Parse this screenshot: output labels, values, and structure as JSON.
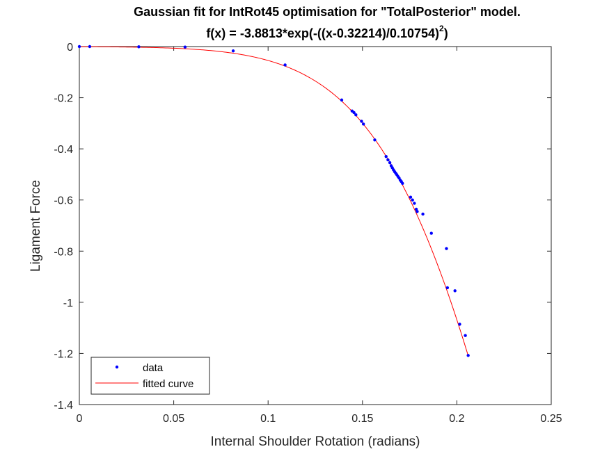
{
  "chart_data": {
    "type": "scatter",
    "title": "Gaussian fit for IntRot45 optimisation for \"TotalPosterior\" model.",
    "subtitle_main": "f(x) = -3.8813*exp(-((x-0.32214)/0.10754)",
    "subtitle_exponent": "2",
    "subtitle_tail": ")",
    "xlabel": "Internal Shoulder Rotation (radians)",
    "ylabel": "Ligament Force",
    "xlim": [
      0,
      0.25
    ],
    "ylim": [
      -1.4,
      0
    ],
    "xticks": [
      0,
      0.05,
      0.1,
      0.15,
      0.2,
      0.25
    ],
    "xtick_labels": [
      "0",
      "0.05",
      "0.1",
      "0.15",
      "0.2",
      "0.25"
    ],
    "yticks": [
      0,
      -0.2,
      -0.4,
      -0.6,
      -0.8,
      -1,
      -1.2,
      -1.4
    ],
    "ytick_labels": [
      "0",
      "-0.2",
      "-0.4",
      "-0.6",
      "-0.8",
      "-1",
      "-1.2",
      "-1.4"
    ],
    "grid": false,
    "legend_position": "bottom-left",
    "colors": {
      "data": "#0000ff",
      "fit": "#ff0000",
      "axis": "#262626"
    },
    "series": [
      {
        "name": "data",
        "kind": "points",
        "x": [
          0.0,
          0.0055,
          0.0315,
          0.056,
          0.0815,
          0.109,
          0.139,
          0.1445,
          0.1455,
          0.1465,
          0.1495,
          0.1505,
          0.1565,
          0.1625,
          0.1635,
          0.1645,
          0.1652,
          0.1658,
          0.1664,
          0.167,
          0.1676,
          0.1682,
          0.1688,
          0.1694,
          0.17,
          0.1706,
          0.1712,
          0.1755,
          0.1765,
          0.1775,
          0.1785,
          0.179,
          0.182,
          0.1865,
          0.1945,
          0.195,
          0.199,
          0.2015,
          0.2045,
          0.206
        ],
        "y": [
          0.0,
          0.0,
          -0.001,
          -0.002,
          -0.017,
          -0.072,
          -0.209,
          -0.252,
          -0.258,
          -0.267,
          -0.292,
          -0.303,
          -0.365,
          -0.43,
          -0.443,
          -0.454,
          -0.466,
          -0.474,
          -0.482,
          -0.489,
          -0.495,
          -0.501,
          -0.508,
          -0.514,
          -0.522,
          -0.528,
          -0.535,
          -0.589,
          -0.6,
          -0.613,
          -0.636,
          -0.645,
          -0.655,
          -0.73,
          -0.79,
          -0.943,
          -0.955,
          -1.086,
          -1.13,
          -1.208
        ]
      },
      {
        "name": "fitted curve",
        "kind": "line",
        "model": {
          "a": -3.8813,
          "b": 0.32214,
          "c": 0.10754
        },
        "x_range": [
          0,
          0.206
        ]
      }
    ]
  }
}
